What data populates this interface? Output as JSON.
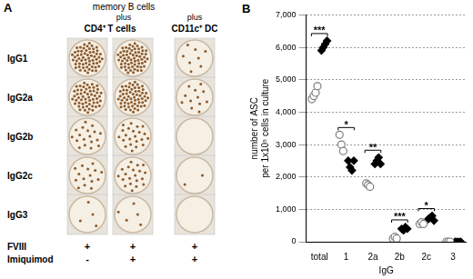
{
  "panel_a": {
    "label": "A",
    "header": "memory B cells",
    "connector": "plus",
    "row_labels": [
      "IgG1",
      "IgG2a",
      "IgG2b",
      "IgG2c",
      "IgG3"
    ],
    "condition_labels": [
      "FVIII",
      "Imiquimod"
    ],
    "groups": [
      {
        "label": "CD4⁺ T cells",
        "conditions": [
          [
            "+",
            "-"
          ],
          [
            "+",
            "+"
          ]
        ],
        "spot_counts": [
          [
            60,
            55,
            18,
            15,
            4
          ],
          [
            62,
            58,
            22,
            20,
            5
          ]
        ]
      },
      {
        "label": "CD11c⁺ DC",
        "conditions": [
          [
            "+",
            "+"
          ]
        ],
        "spot_counts": [
          [
            8,
            12,
            0,
            2,
            0
          ]
        ]
      }
    ]
  },
  "chart_data": {
    "type": "scatter",
    "label": "B",
    "categories": [
      "total",
      "1",
      "2a",
      "2b",
      "2c",
      "3"
    ],
    "x_label": "IgG",
    "y_label": [
      "number of ASC",
      "per 1x10⁵ cells in culture"
    ],
    "ylim": [
      0,
      7000
    ],
    "yticks": [
      0,
      {
        "value": 1000,
        "label": "1,000"
      },
      {
        "value": 2000,
        "label": "2,000"
      },
      {
        "value": 3000,
        "label": "3,000"
      },
      {
        "value": 4000,
        "label": "4,000"
      },
      {
        "value": 5000,
        "label": "5,000"
      },
      {
        "value": 6000,
        "label": "6,000"
      },
      {
        "value": 7000,
        "label": "7,000"
      }
    ],
    "grid": true,
    "series": [
      {
        "color": "#7f7f7f",
        "marker": "open_circle",
        "values": [
          [
            4400,
            4500,
            4600,
            4800
          ],
          [
            3300,
            3000,
            2800
          ],
          [
            1800,
            1750,
            1700
          ],
          [
            100,
            150,
            100
          ],
          [
            550,
            600,
            550
          ],
          [
            0,
            0,
            0
          ]
        ]
      },
      {
        "color": "#000000",
        "marker": "diamond",
        "values": [
          [
            5900,
            6000,
            6100,
            6200
          ],
          [
            2500,
            2300,
            2200,
            2500
          ],
          [
            2400,
            2500,
            2600,
            2400
          ],
          [
            400,
            350,
            450,
            400
          ],
          [
            700,
            750,
            800,
            650
          ],
          [
            0,
            0,
            0,
            0
          ]
        ]
      }
    ],
    "annotations": [
      {
        "category": "total",
        "label": "***"
      },
      {
        "category": "1",
        "label": "*"
      },
      {
        "category": "2a",
        "label": "**"
      },
      {
        "category": "2b",
        "label": "***"
      },
      {
        "category": "2c",
        "label": "*"
      }
    ]
  }
}
